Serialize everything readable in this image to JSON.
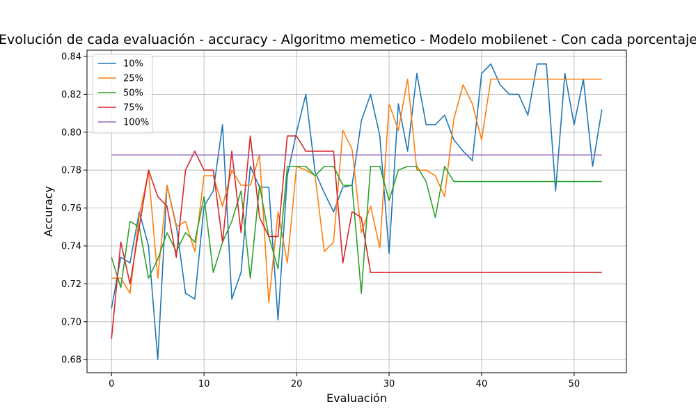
{
  "chart_data": {
    "type": "line",
    "title": "Evolución de cada evaluación - accuracy - Algoritmo memetico - Modelo mobilenet - Con cada porcentaje",
    "xlabel": "Evaluación",
    "ylabel": "Accuracy",
    "xlim": [
      -2.65,
      55.65
    ],
    "ylim": [
      0.6731,
      0.8433
    ],
    "xticks": [
      0,
      10,
      20,
      30,
      40,
      50
    ],
    "yticks": [
      0.68,
      0.7,
      0.72,
      0.74,
      0.76,
      0.78,
      0.8,
      0.82,
      0.84
    ],
    "ytick_labels": [
      "0.68",
      "0.70",
      "0.72",
      "0.74",
      "0.76",
      "0.78",
      "0.80",
      "0.82",
      "0.84"
    ],
    "grid": true,
    "legend_position": "top-left",
    "series": [
      {
        "name": "10%",
        "color": "#1f77b4",
        "values": [
          0.707,
          0.734,
          0.731,
          0.758,
          0.74,
          0.68,
          0.772,
          0.751,
          0.715,
          0.712,
          0.761,
          0.769,
          0.804,
          0.712,
          0.726,
          0.782,
          0.771,
          0.771,
          0.701,
          0.777,
          0.8,
          0.82,
          0.779,
          0.768,
          0.758,
          0.771,
          0.772,
          0.806,
          0.82,
          0.798,
          0.736,
          0.815,
          0.79,
          0.831,
          0.804,
          0.804,
          0.809,
          0.796,
          0.79,
          0.785,
          0.831,
          0.836,
          0.825,
          0.82,
          0.82,
          0.809,
          0.836,
          0.836,
          0.769,
          0.831,
          0.804,
          0.828,
          0.782,
          0.812
        ]
      },
      {
        "name": "25%",
        "color": "#ff7f0e",
        "values": [
          0.723,
          0.723,
          0.715,
          0.756,
          0.779,
          0.723,
          0.772,
          0.75,
          0.753,
          0.737,
          0.777,
          0.777,
          0.761,
          0.78,
          0.772,
          0.772,
          0.788,
          0.71,
          0.758,
          0.731,
          0.782,
          0.78,
          0.777,
          0.737,
          0.742,
          0.801,
          0.791,
          0.747,
          0.761,
          0.739,
          0.815,
          0.801,
          0.828,
          0.78,
          0.78,
          0.777,
          0.766,
          0.807,
          0.825,
          0.815,
          0.796,
          0.828,
          0.828,
          0.828,
          0.828,
          0.828,
          0.828,
          0.828,
          0.828,
          0.828,
          0.828,
          0.828,
          0.828,
          0.828
        ]
      },
      {
        "name": "50%",
        "color": "#2ca02c",
        "values": [
          0.734,
          0.718,
          0.753,
          0.75,
          0.723,
          0.733,
          0.747,
          0.737,
          0.747,
          0.742,
          0.766,
          0.726,
          0.742,
          0.753,
          0.769,
          0.723,
          0.772,
          0.745,
          0.728,
          0.782,
          0.782,
          0.782,
          0.777,
          0.782,
          0.782,
          0.772,
          0.772,
          0.715,
          0.782,
          0.782,
          0.764,
          0.78,
          0.782,
          0.782,
          0.774,
          0.755,
          0.782,
          0.774,
          0.774,
          0.774,
          0.774,
          0.774,
          0.774,
          0.774,
          0.774,
          0.774,
          0.774,
          0.774,
          0.774,
          0.774,
          0.774,
          0.774,
          0.774,
          0.774
        ]
      },
      {
        "name": "75%",
        "color": "#d62728",
        "values": [
          0.691,
          0.742,
          0.72,
          0.75,
          0.78,
          0.766,
          0.761,
          0.734,
          0.78,
          0.79,
          0.78,
          0.78,
          0.742,
          0.79,
          0.747,
          0.798,
          0.755,
          0.745,
          0.745,
          0.798,
          0.798,
          0.79,
          0.79,
          0.79,
          0.79,
          0.731,
          0.758,
          0.755,
          0.726,
          0.726,
          0.726,
          0.726,
          0.726,
          0.726,
          0.726,
          0.726,
          0.726,
          0.726,
          0.726,
          0.726,
          0.726,
          0.726,
          0.726,
          0.726,
          0.726,
          0.726,
          0.726,
          0.726,
          0.726,
          0.726,
          0.726,
          0.726,
          0.726,
          0.726
        ]
      },
      {
        "name": "100%",
        "color": "#9467bd",
        "values": [
          0.788,
          0.788,
          0.788,
          0.788,
          0.788,
          0.788,
          0.788,
          0.788,
          0.788,
          0.788,
          0.788,
          0.788,
          0.788,
          0.788,
          0.788,
          0.788,
          0.788,
          0.788,
          0.788,
          0.788,
          0.788,
          0.788,
          0.788,
          0.788,
          0.788,
          0.788,
          0.788,
          0.788,
          0.788,
          0.788,
          0.788,
          0.788,
          0.788,
          0.788,
          0.788,
          0.788,
          0.788,
          0.788,
          0.788,
          0.788,
          0.788,
          0.788,
          0.788,
          0.788,
          0.788,
          0.788,
          0.788,
          0.788,
          0.788,
          0.788,
          0.788,
          0.788,
          0.788,
          0.788
        ]
      }
    ]
  }
}
